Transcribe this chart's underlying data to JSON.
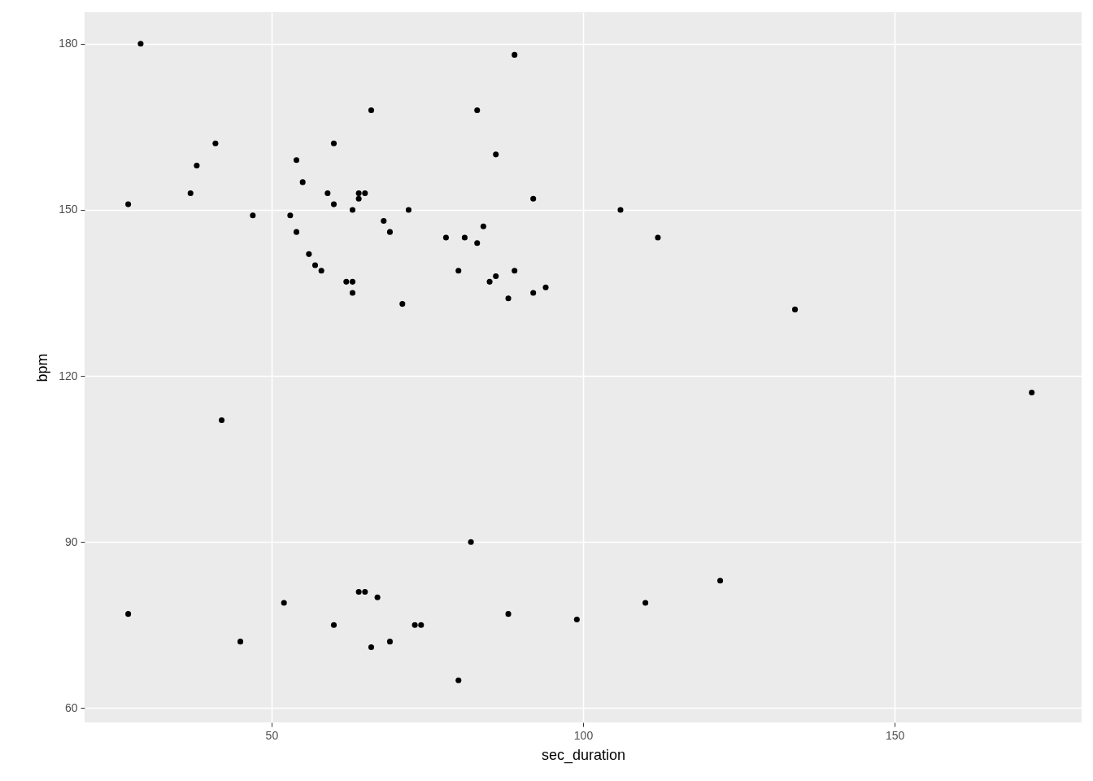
{
  "chart_data": {
    "type": "scatter",
    "xlabel": "sec_duration",
    "ylabel": "bpm",
    "x": [
      29,
      27,
      38,
      37,
      41,
      47,
      42,
      27,
      45,
      52,
      53,
      54,
      54,
      55,
      56,
      57,
      58,
      59,
      60,
      60,
      60,
      62,
      63,
      63,
      63,
      64,
      64,
      65,
      66,
      64,
      65,
      67,
      66,
      68,
      69,
      69,
      71,
      72,
      73,
      74,
      78,
      80,
      80,
      81,
      82,
      83,
      83,
      84,
      85,
      86,
      86,
      88,
      88,
      89,
      89,
      92,
      92,
      94,
      99,
      106,
      110,
      112,
      122,
      134,
      172
    ],
    "series": [
      {
        "color": "#000000",
        "values": [
          180,
          151,
          158,
          153,
          162,
          149,
          112,
          77,
          72,
          79,
          149,
          159,
          146,
          155,
          142,
          140,
          139,
          153,
          162,
          151,
          75,
          137,
          137,
          135,
          150,
          153,
          152,
          153,
          168,
          81,
          81,
          80,
          71,
          148,
          146,
          72,
          133,
          150,
          75,
          75,
          145,
          139,
          65,
          145,
          90,
          168,
          144,
          147,
          137,
          160,
          138,
          134,
          77,
          178,
          139,
          152,
          135,
          136,
          76,
          150,
          79,
          145,
          83,
          132,
          117
        ]
      }
    ],
    "xlim": [
      20,
      180
    ],
    "ylim": [
      57.4,
      185.7
    ],
    "xticks": [
      50,
      100,
      150
    ],
    "yticks": [
      60,
      90,
      120,
      150,
      180
    ],
    "grid": true,
    "marker": "circle"
  }
}
